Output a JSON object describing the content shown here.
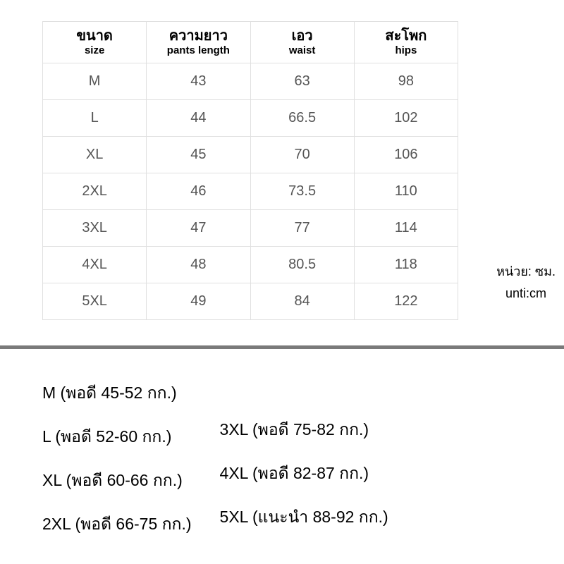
{
  "table": {
    "columns": [
      {
        "main": "ขนาด",
        "sub": "size"
      },
      {
        "main": "ความยาว",
        "sub": "pants length"
      },
      {
        "main": "เอว",
        "sub": "waist"
      },
      {
        "main": "สะโพก",
        "sub": "hips"
      }
    ],
    "rows": [
      [
        "M",
        "43",
        "63",
        "98"
      ],
      [
        "L",
        "44",
        "66.5",
        "102"
      ],
      [
        "XL",
        "45",
        "70",
        "106"
      ],
      [
        "2XL",
        "46",
        "73.5",
        "110"
      ],
      [
        "3XL",
        "47",
        "77",
        "114"
      ],
      [
        "4XL",
        "48",
        "80.5",
        "118"
      ],
      [
        "5XL",
        "49",
        "84",
        "122"
      ]
    ],
    "border_color": "#e0e0e0",
    "header_fontsize": 20,
    "subheader_fontsize": 15,
    "cell_fontsize": 20,
    "text_color": "#555555"
  },
  "unit": {
    "line1": "หน่วย: ซม.",
    "line2": "unti:cm",
    "fontsize": 18
  },
  "divider": {
    "color": "#7a7a7a",
    "height": 5
  },
  "weight_guide": {
    "left_col": [
      "M (พอดี 45-52 กก.)",
      "L (พอดี 52-60 กก.)",
      "XL (พอดี 60-66 กก.)",
      "2XL (พอดี 66-75 กก.)"
    ],
    "right_col": [
      "3XL (พอดี 75-82 กก.)",
      "4XL (พอดี 82-87 กก.)",
      "5XL (แนะนำ 88-92 กก.)"
    ],
    "fontsize": 23
  },
  "background_color": "#ffffff"
}
